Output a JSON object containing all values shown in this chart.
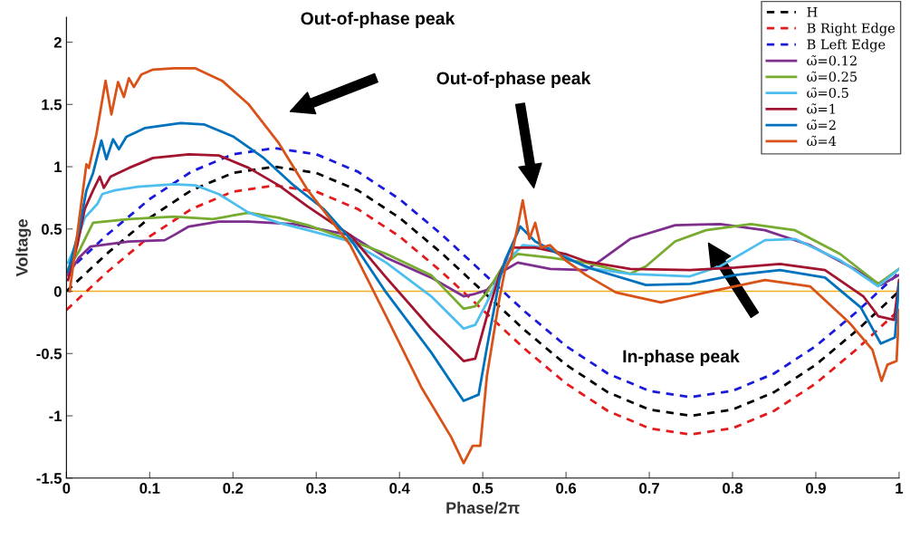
{
  "chart_data": {
    "type": "line",
    "xlabel": "Phase/2π",
    "ylabel": "Voltage",
    "xlim": [
      0,
      1
    ],
    "ylim": [
      -1.5,
      2.2
    ],
    "xticks": [
      0,
      0.1,
      0.2,
      0.3,
      0.4,
      0.5,
      0.6,
      0.7,
      0.8,
      0.9,
      1
    ],
    "yticks": [
      -1.5,
      -1,
      -0.5,
      0,
      0.5,
      1,
      1.5,
      2
    ],
    "grid": false,
    "legend": "top right",
    "marker": "none",
    "ref_lines": [
      {
        "axis": "y",
        "value": 0,
        "label": null,
        "color": "#edb120",
        "line_style": "solid"
      }
    ],
    "annotations": [
      "Out-of-phase peak",
      "Out-of-phase peak",
      "In-phase peak"
    ],
    "series": [
      {
        "name": "H",
        "color": "#000000",
        "line_style": "dashed",
        "x": [
          0,
          0.05,
          0.1,
          0.15,
          0.2,
          0.25,
          0.3,
          0.35,
          0.4,
          0.45,
          0.5,
          0.55,
          0.6,
          0.65,
          0.7,
          0.75,
          0.8,
          0.85,
          0.9,
          0.95,
          1
        ],
        "values": [
          0,
          0.31,
          0.59,
          0.81,
          0.95,
          1,
          0.95,
          0.81,
          0.59,
          0.31,
          0,
          -0.31,
          -0.59,
          -0.81,
          -0.95,
          -1,
          -0.95,
          -0.81,
          -0.59,
          -0.31,
          0
        ]
      },
      {
        "name": "B Right Edge",
        "color": "#e41a1c",
        "line_style": "dashed",
        "x": [
          0,
          0.05,
          0.1,
          0.15,
          0.2,
          0.25,
          0.3,
          0.35,
          0.4,
          0.45,
          0.5,
          0.55,
          0.6,
          0.65,
          0.7,
          0.75,
          0.8,
          0.85,
          0.9,
          0.95,
          1
        ],
        "values": [
          -0.15,
          0.16,
          0.44,
          0.66,
          0.8,
          0.85,
          0.8,
          0.66,
          0.44,
          0.16,
          -0.15,
          -0.46,
          -0.74,
          -0.96,
          -1.1,
          -1.15,
          -1.1,
          -0.96,
          -0.74,
          -0.46,
          -0.15
        ]
      },
      {
        "name": "B Left Edge",
        "color": "#1a1adb",
        "line_style": "dashed",
        "x": [
          0,
          0.05,
          0.1,
          0.15,
          0.2,
          0.25,
          0.3,
          0.35,
          0.4,
          0.45,
          0.5,
          0.55,
          0.6,
          0.65,
          0.7,
          0.75,
          0.8,
          0.85,
          0.9,
          0.95,
          1
        ],
        "values": [
          0.15,
          0.46,
          0.74,
          0.96,
          1.1,
          1.15,
          1.1,
          0.96,
          0.74,
          0.46,
          0.15,
          -0.16,
          -0.44,
          -0.66,
          -0.8,
          -0.85,
          -0.8,
          -0.66,
          -0.44,
          -0.16,
          0.15
        ]
      },
      {
        "name": "ω̃=0.12",
        "color": "#7e2f8e",
        "line_style": "solid",
        "x": [
          0.002,
          0.015,
          0.029,
          0.075,
          0.118,
          0.129,
          0.147,
          0.183,
          0.219,
          0.273,
          0.341,
          0.384,
          0.438,
          0.477,
          0.491,
          0.505,
          0.524,
          0.542,
          0.581,
          0.624,
          0.642,
          0.677,
          0.731,
          0.785,
          0.839,
          0.893,
          0.946,
          0.978,
          1.0
        ],
        "values": [
          0.13,
          0.27,
          0.36,
          0.4,
          0.41,
          0.45,
          0.52,
          0.56,
          0.56,
          0.54,
          0.45,
          0.27,
          0.11,
          -0.04,
          -0.02,
          0.01,
          0.16,
          0.23,
          0.18,
          0.17,
          0.25,
          0.42,
          0.53,
          0.54,
          0.49,
          0.37,
          0.18,
          0.05,
          0.13
        ]
      },
      {
        "name": "ω̃=0.25",
        "color": "#77ac30",
        "line_style": "solid",
        "x": [
          0.002,
          0.015,
          0.026,
          0.032,
          0.075,
          0.129,
          0.176,
          0.201,
          0.219,
          0.255,
          0.29,
          0.341,
          0.384,
          0.438,
          0.477,
          0.491,
          0.505,
          0.524,
          0.542,
          0.581,
          0.624,
          0.677,
          0.696,
          0.731,
          0.768,
          0.822,
          0.875,
          0.929,
          0.975,
          1.0
        ],
        "values": [
          0.18,
          0.32,
          0.47,
          0.55,
          0.58,
          0.6,
          0.58,
          0.61,
          0.63,
          0.59,
          0.53,
          0.41,
          0.3,
          0.13,
          -0.14,
          -0.12,
          -0.01,
          0.2,
          0.3,
          0.27,
          0.23,
          0.14,
          0.2,
          0.4,
          0.49,
          0.54,
          0.49,
          0.3,
          0.06,
          0.18
        ]
      },
      {
        "name": "ω̃=0.5",
        "color": "#4dbeee",
        "line_style": "solid",
        "x": [
          0.002,
          0.011,
          0.022,
          0.037,
          0.043,
          0.058,
          0.086,
          0.129,
          0.155,
          0.183,
          0.219,
          0.255,
          0.29,
          0.341,
          0.384,
          0.438,
          0.477,
          0.491,
          0.505,
          0.527,
          0.548,
          0.581,
          0.624,
          0.677,
          0.749,
          0.785,
          0.839,
          0.875,
          0.929,
          0.975,
          1.0
        ],
        "values": [
          0.23,
          0.37,
          0.59,
          0.7,
          0.78,
          0.81,
          0.84,
          0.86,
          0.85,
          0.78,
          0.63,
          0.55,
          0.49,
          0.4,
          0.23,
          -0.04,
          -0.3,
          -0.27,
          -0.09,
          0.23,
          0.37,
          0.35,
          0.19,
          0.14,
          0.12,
          0.2,
          0.41,
          0.42,
          0.25,
          0.04,
          0.18
        ]
      },
      {
        "name": "ω̃=1",
        "color": "#a2142f",
        "line_style": "solid",
        "x": [
          0.002,
          0.013,
          0.022,
          0.032,
          0.04,
          0.045,
          0.053,
          0.075,
          0.104,
          0.147,
          0.183,
          0.219,
          0.255,
          0.29,
          0.341,
          0.384,
          0.438,
          0.477,
          0.491,
          0.505,
          0.52,
          0.534,
          0.563,
          0.599,
          0.624,
          0.677,
          0.749,
          0.803,
          0.857,
          0.911,
          0.957,
          0.975,
          0.994,
          1.0
        ],
        "values": [
          0.09,
          0.37,
          0.66,
          0.81,
          0.92,
          0.83,
          0.92,
          0.99,
          1.07,
          1.1,
          1.09,
          0.99,
          0.85,
          0.68,
          0.45,
          0.11,
          -0.3,
          -0.56,
          -0.54,
          -0.2,
          0.13,
          0.35,
          0.35,
          0.3,
          0.24,
          0.18,
          0.17,
          0.19,
          0.22,
          0.17,
          -0.04,
          -0.2,
          -0.23,
          0.09
        ]
      },
      {
        "name": "ω̃=2",
        "color": "#0072bd",
        "line_style": "solid",
        "x": [
          0.002,
          0.015,
          0.024,
          0.032,
          0.042,
          0.048,
          0.056,
          0.063,
          0.072,
          0.094,
          0.137,
          0.165,
          0.201,
          0.237,
          0.273,
          0.309,
          0.341,
          0.384,
          0.438,
          0.477,
          0.495,
          0.505,
          0.52,
          0.527,
          0.545,
          0.563,
          0.599,
          0.631,
          0.696,
          0.749,
          0.803,
          0.857,
          0.911,
          0.954,
          0.978,
          0.995,
          1.0
        ],
        "values": [
          0.16,
          0.49,
          0.81,
          0.95,
          1.21,
          1.06,
          1.22,
          1.14,
          1.24,
          1.31,
          1.35,
          1.34,
          1.24,
          1.07,
          0.85,
          0.66,
          0.42,
          -0.01,
          -0.49,
          -0.88,
          -0.83,
          -0.45,
          0.09,
          0.25,
          0.52,
          0.4,
          0.27,
          0.18,
          0.05,
          0.06,
          0.13,
          0.17,
          0.11,
          -0.13,
          -0.42,
          -0.37,
          0.06
        ]
      },
      {
        "name": "ω̃=4",
        "color": "#d95319",
        "line_style": "solid",
        "x": [
          0.004,
          0.024,
          0.027,
          0.036,
          0.047,
          0.054,
          0.062,
          0.069,
          0.075,
          0.081,
          0.09,
          0.104,
          0.129,
          0.155,
          0.187,
          0.219,
          0.255,
          0.29,
          0.341,
          0.384,
          0.427,
          0.462,
          0.477,
          0.488,
          0.497,
          0.505,
          0.52,
          0.527,
          0.534,
          0.542,
          0.548,
          0.556,
          0.563,
          0.57,
          0.581,
          0.599,
          0.624,
          0.66,
          0.714,
          0.768,
          0.839,
          0.893,
          0.94,
          0.968,
          0.979,
          0.986,
          0.997,
          1.0
        ],
        "values": [
          0,
          1.02,
          0.99,
          1.26,
          1.69,
          1.42,
          1.68,
          1.56,
          1.71,
          1.64,
          1.74,
          1.78,
          1.79,
          1.79,
          1.69,
          1.5,
          1.19,
          0.81,
          0.37,
          -0.2,
          -0.78,
          -1.17,
          -1.38,
          -1.24,
          -1.24,
          -0.68,
          -0.06,
          0.18,
          0.27,
          0.52,
          0.73,
          0.42,
          0.55,
          0.35,
          0.37,
          0.25,
          0.13,
          -0.01,
          -0.09,
          -0.01,
          0.09,
          0.04,
          -0.25,
          -0.47,
          -0.72,
          -0.59,
          -0.56,
          -0.15
        ]
      }
    ]
  }
}
